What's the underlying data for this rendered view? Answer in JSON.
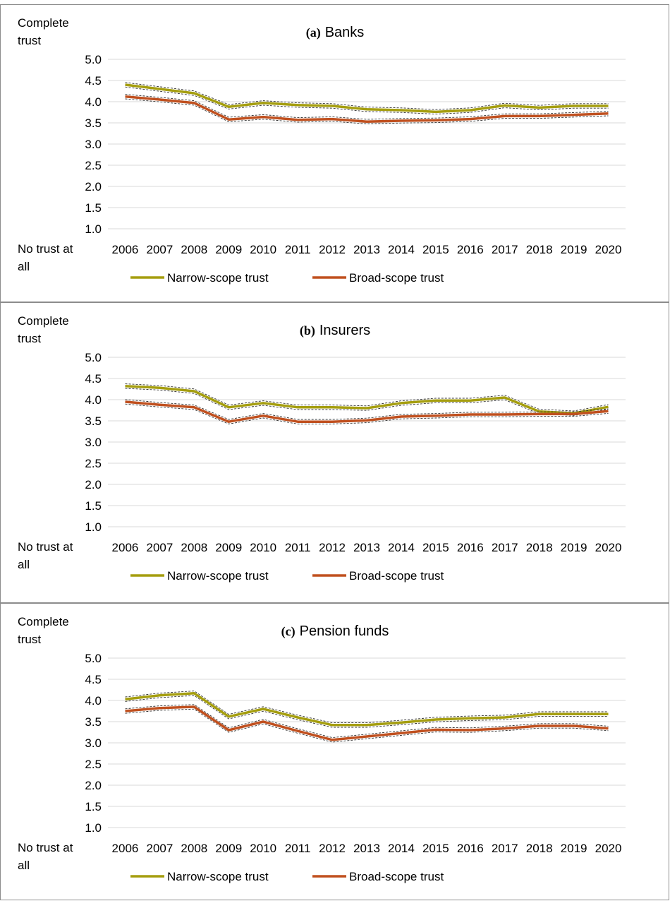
{
  "chart_data": [
    {
      "type": "line",
      "title_letter": "(a)",
      "title": "Banks",
      "ylabel_top": [
        "Complete",
        "trust"
      ],
      "ylabel_bottom": [
        "No trust at",
        "all"
      ],
      "yticks": [
        "1.0",
        "1.5",
        "2.0",
        "2.5",
        "3.0",
        "3.5",
        "4.0",
        "4.5",
        "5.0"
      ],
      "ylim": [
        1.0,
        5.0
      ],
      "grid": true,
      "legend_position": "bottom",
      "x": [
        "2006",
        "2007",
        "2008",
        "2009",
        "2010",
        "2011",
        "2012",
        "2013",
        "2014",
        "2015",
        "2016",
        "2017",
        "2018",
        "2019",
        "2020"
      ],
      "series": [
        {
          "name": "Narrow-scope trust",
          "color": "#a59e0f",
          "values": [
            4.4,
            4.3,
            4.2,
            3.88,
            3.97,
            3.92,
            3.9,
            3.82,
            3.8,
            3.76,
            3.8,
            3.91,
            3.86,
            3.9,
            3.9
          ]
        },
        {
          "name": "Broad-scope trust",
          "color": "#c0501f",
          "values": [
            4.12,
            4.05,
            3.97,
            3.58,
            3.64,
            3.57,
            3.59,
            3.53,
            3.55,
            3.56,
            3.59,
            3.66,
            3.66,
            3.69,
            3.72
          ]
        }
      ]
    },
    {
      "type": "line",
      "title_letter": "(b)",
      "title": "Insurers",
      "ylabel_top": [
        "Complete",
        "trust"
      ],
      "ylabel_bottom": [
        "No trust at",
        "all"
      ],
      "yticks": [
        "1.0",
        "1.5",
        "2.0",
        "2.5",
        "3.0",
        "3.5",
        "4.0",
        "4.5",
        "5.0"
      ],
      "ylim": [
        1.0,
        5.0
      ],
      "grid": true,
      "legend_position": "bottom",
      "x": [
        "2006",
        "2007",
        "2008",
        "2009",
        "2010",
        "2011",
        "2012",
        "2013",
        "2014",
        "2015",
        "2016",
        "2017",
        "2018",
        "2019",
        "2020"
      ],
      "series": [
        {
          "name": "Narrow-scope trust",
          "color": "#a59e0f",
          "values": [
            4.32,
            4.28,
            4.2,
            3.82,
            3.92,
            3.82,
            3.82,
            3.8,
            3.92,
            3.98,
            3.98,
            4.05,
            3.72,
            3.68,
            3.83
          ]
        },
        {
          "name": "Broad-scope trust",
          "color": "#c0501f",
          "values": [
            3.95,
            3.88,
            3.82,
            3.48,
            3.62,
            3.48,
            3.48,
            3.51,
            3.6,
            3.62,
            3.65,
            3.65,
            3.66,
            3.66,
            3.73
          ]
        }
      ]
    },
    {
      "type": "line",
      "title_letter": "(c)",
      "title": "Pension funds",
      "ylabel_top": [
        "Complete",
        "trust"
      ],
      "ylabel_bottom": [
        "No trust at",
        "all"
      ],
      "yticks": [
        "1.0",
        "1.5",
        "2.0",
        "2.5",
        "3.0",
        "3.5",
        "4.0",
        "4.5",
        "5.0"
      ],
      "ylim": [
        1.0,
        5.0
      ],
      "grid": true,
      "legend_position": "bottom",
      "x": [
        "2006",
        "2007",
        "2008",
        "2009",
        "2010",
        "2011",
        "2012",
        "2013",
        "2014",
        "2015",
        "2016",
        "2017",
        "2018",
        "2019",
        "2020"
      ],
      "series": [
        {
          "name": "Narrow-scope trust",
          "color": "#a59e0f",
          "values": [
            4.03,
            4.12,
            4.17,
            3.62,
            3.8,
            3.6,
            3.42,
            3.42,
            3.48,
            3.55,
            3.58,
            3.6,
            3.68,
            3.68,
            3.68
          ]
        },
        {
          "name": "Broad-scope trust",
          "color": "#c0501f",
          "values": [
            3.75,
            3.82,
            3.85,
            3.3,
            3.5,
            3.28,
            3.07,
            3.15,
            3.23,
            3.31,
            3.3,
            3.34,
            3.4,
            3.4,
            3.34
          ]
        }
      ]
    }
  ]
}
